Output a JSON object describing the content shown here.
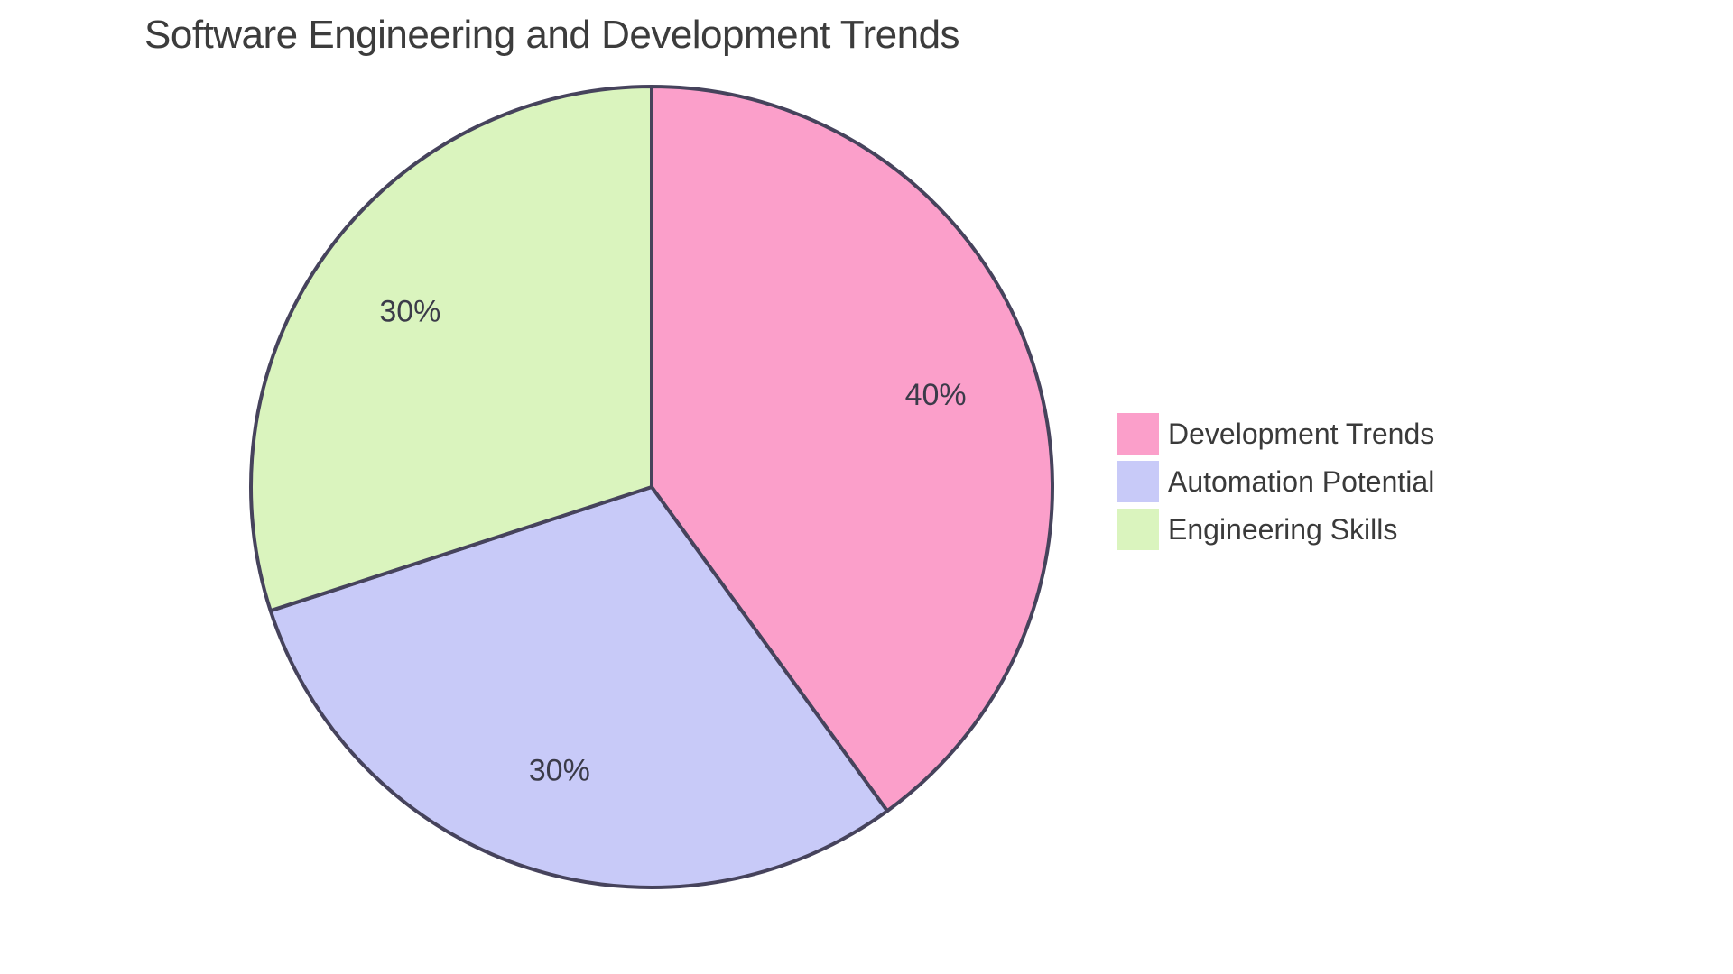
{
  "page": {
    "background": "#FFFFFF"
  },
  "chart_data": {
    "type": "pie",
    "title": "Software Engineering and Development Trends",
    "series": [
      {
        "label": "Development Trends",
        "value": 40,
        "display": "40%",
        "color": "#FB9FCA"
      },
      {
        "label": "Automation Potential",
        "value": 30,
        "display": "30%",
        "color": "#C8CAF8"
      },
      {
        "label": "Engineering Skills",
        "value": 30,
        "display": "30%",
        "color": "#DAF4BE"
      }
    ],
    "start_angle": "top",
    "direction": "clockwise",
    "slice_border_color": "#46435C",
    "slice_border_width": 4,
    "label_color": "#3B3B49",
    "title_color": "#3C3C3C",
    "legend_text_color": "#3A3A3A",
    "legend_position": "right"
  }
}
